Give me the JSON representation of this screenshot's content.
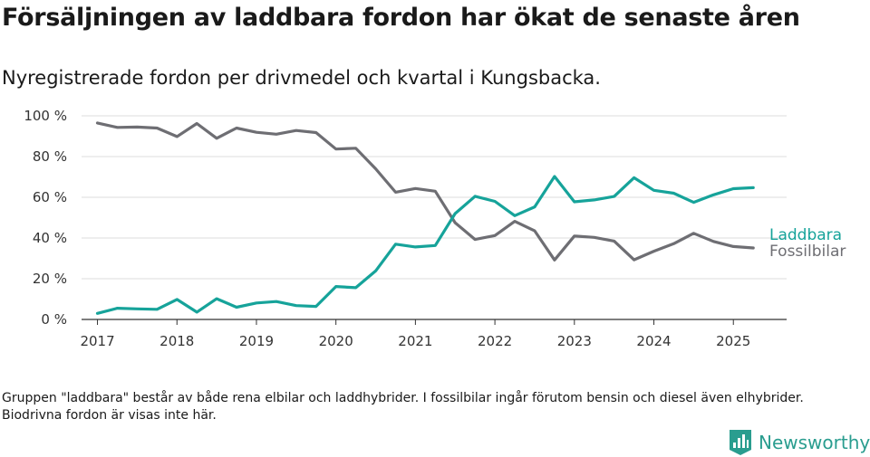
{
  "title": "Försäljningen av laddbara fordon har ökat de senaste åren",
  "subtitle": "Nyregistrerade fordon per drivmedel och kvartal i Kungsbacka.",
  "footnote": "Gruppen \"laddbara\" består av både rena elbilar och laddhybrider. I fossilbilar ingår förutom bensin och diesel även elhybrider. Biodrivna fordon är visas inte här.",
  "brand": {
    "name": "Newsworthy",
    "icon": "newsworthy-logo-icon",
    "color": "#2a9d8f"
  },
  "chart_data": {
    "type": "line",
    "title": "Försäljningen av laddbara fordon har ökat de senaste åren",
    "subtitle": "Nyregistrerade fordon per drivmedel och kvartal i Kungsbacka.",
    "xlabel": "",
    "ylabel": "",
    "x": [
      2017.0,
      2017.25,
      2017.5,
      2017.75,
      2018.0,
      2018.25,
      2018.5,
      2018.75,
      2019.0,
      2019.25,
      2019.5,
      2019.75,
      2020.0,
      2020.25,
      2020.5,
      2020.75,
      2021.0,
      2021.25,
      2021.5,
      2021.75,
      2022.0,
      2022.25,
      2022.5,
      2022.75,
      2023.0,
      2023.25,
      2023.5,
      2023.75,
      2024.0,
      2024.25,
      2024.5,
      2024.75,
      2025.0,
      2025.25
    ],
    "xlim": [
      2016.8,
      2025.67
    ],
    "xticks": [
      2017,
      2018,
      2019,
      2020,
      2021,
      2022,
      2023,
      2024,
      2025
    ],
    "xtick_labels": [
      "2017",
      "2018",
      "2019",
      "2020",
      "2021",
      "2022",
      "2023",
      "2024",
      "2025"
    ],
    "ylim": [
      0,
      100
    ],
    "yticks": [
      0,
      20,
      40,
      60,
      80,
      100
    ],
    "ytick_labels": [
      "0 %",
      "20 %",
      "40 %",
      "60 %",
      "80 %",
      "100 %"
    ],
    "grid": true,
    "legend": "end-of-line labels, right",
    "series": [
      {
        "name": "Laddbara",
        "color": "#16a39a",
        "values": [
          3,
          5.5,
          5.2,
          5,
          9.8,
          3.6,
          10.2,
          6,
          8.1,
          8.8,
          6.8,
          6.4,
          16.2,
          15.6,
          23.8,
          37,
          35.6,
          36.3,
          52,
          60.5,
          58,
          51,
          55.3,
          70.2,
          57.8,
          58.7,
          60.4,
          69.6,
          63.4,
          62,
          57.5,
          61.2,
          64.2,
          64.7
        ]
      },
      {
        "name": "Fossilbilar",
        "color": "#6e6e73",
        "values": [
          96.5,
          94.3,
          94.5,
          94,
          89.8,
          96.2,
          89,
          94,
          91.9,
          91,
          92.8,
          91.8,
          83.7,
          84.1,
          74,
          62.5,
          64.3,
          63,
          47.5,
          39.3,
          41.2,
          48.2,
          43.5,
          29.2,
          41,
          40.3,
          38.5,
          29.3,
          33.5,
          37.2,
          42.3,
          38.3,
          35.8,
          35.1
        ]
      }
    ]
  }
}
